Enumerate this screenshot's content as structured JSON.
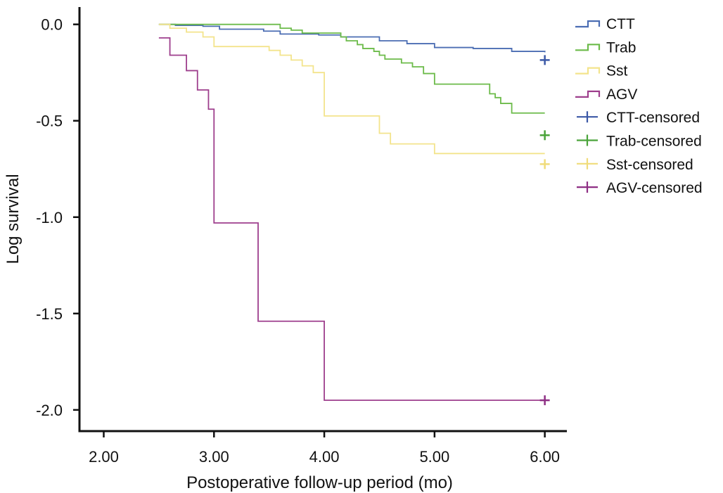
{
  "chart_data": {
    "type": "line",
    "title": "",
    "xlabel": "Postoperative follow-up period (mo)",
    "ylabel": "Log survival",
    "xlim": [
      1.78,
      6.2
    ],
    "ylim": [
      -2.11,
      0.09
    ],
    "x_ticks": [
      {
        "value": 2,
        "label": "2.00"
      },
      {
        "value": 3,
        "label": "3.00"
      },
      {
        "value": 4,
        "label": "4.00"
      },
      {
        "value": 5,
        "label": "5.00"
      },
      {
        "value": 6,
        "label": "6.00"
      }
    ],
    "y_ticks": [
      {
        "value": 0,
        "label": "0.0"
      },
      {
        "value": -0.5,
        "label": "-0.5"
      },
      {
        "value": -1,
        "label": "-1.0"
      },
      {
        "value": -1.5,
        "label": "-1.5"
      },
      {
        "value": -2,
        "label": "-2.0"
      }
    ],
    "grid": false,
    "legend_position": "right",
    "step": true,
    "series": [
      {
        "name": "CTT",
        "color": "#4b6db3",
        "x": [
          2.5,
          2.65,
          2.9,
          3.05,
          3.45,
          3.6,
          3.95,
          4.15,
          4.5,
          4.75,
          5.0,
          5.35,
          5.7,
          6.0
        ],
        "y": [
          0,
          -0.005,
          -0.01,
          -0.025,
          -0.035,
          -0.05,
          -0.055,
          -0.065,
          -0.085,
          -0.1,
          -0.12,
          -0.125,
          -0.14,
          -0.145
        ]
      },
      {
        "name": "Trab",
        "color": "#6cbb4a",
        "x": [
          2.5,
          2.8,
          3.6,
          3.7,
          3.8,
          4.15,
          4.2,
          4.3,
          4.35,
          4.45,
          4.5,
          4.55,
          4.7,
          4.8,
          4.9,
          5.0,
          5.3,
          5.5,
          5.55,
          5.6,
          5.7,
          6.0
        ],
        "y": [
          0,
          0,
          -0.02,
          -0.03,
          -0.045,
          -0.065,
          -0.085,
          -0.105,
          -0.125,
          -0.14,
          -0.16,
          -0.18,
          -0.2,
          -0.22,
          -0.255,
          -0.31,
          -0.31,
          -0.36,
          -0.38,
          -0.41,
          -0.46,
          -0.46
        ]
      },
      {
        "name": "Sst",
        "color": "#f3e48c",
        "x": [
          2.5,
          2.6,
          2.75,
          2.9,
          3.0,
          3.5,
          3.6,
          3.7,
          3.8,
          3.9,
          4.0,
          4.5,
          4.6,
          5.0,
          6.0
        ],
        "y": [
          0,
          -0.02,
          -0.04,
          -0.065,
          -0.115,
          -0.135,
          -0.16,
          -0.185,
          -0.215,
          -0.25,
          -0.475,
          -0.565,
          -0.62,
          -0.67,
          -0.67
        ]
      },
      {
        "name": "AGV",
        "color": "#9e3f8d",
        "x": [
          2.5,
          2.6,
          2.75,
          2.85,
          2.95,
          3.0,
          3.4,
          4.0,
          6.0
        ],
        "y": [
          -0.07,
          -0.16,
          -0.24,
          -0.34,
          -0.44,
          -1.03,
          -1.54,
          -1.95,
          -1.95
        ]
      }
    ],
    "censored": [
      {
        "name": "CTT-censored",
        "color": "#3b58a6",
        "x": [
          6.0
        ],
        "y": [
          -0.185
        ]
      },
      {
        "name": "Trab-censored",
        "color": "#4aa33a",
        "x": [
          6.0
        ],
        "y": [
          -0.575
        ]
      },
      {
        "name": "Sst-censored",
        "color": "#f0dc7a",
        "x": [
          6.0
        ],
        "y": [
          -0.725
        ]
      },
      {
        "name": "AGV-censored",
        "color": "#8e2f84",
        "x": [
          6.0
        ],
        "y": [
          -1.95
        ]
      }
    ]
  }
}
